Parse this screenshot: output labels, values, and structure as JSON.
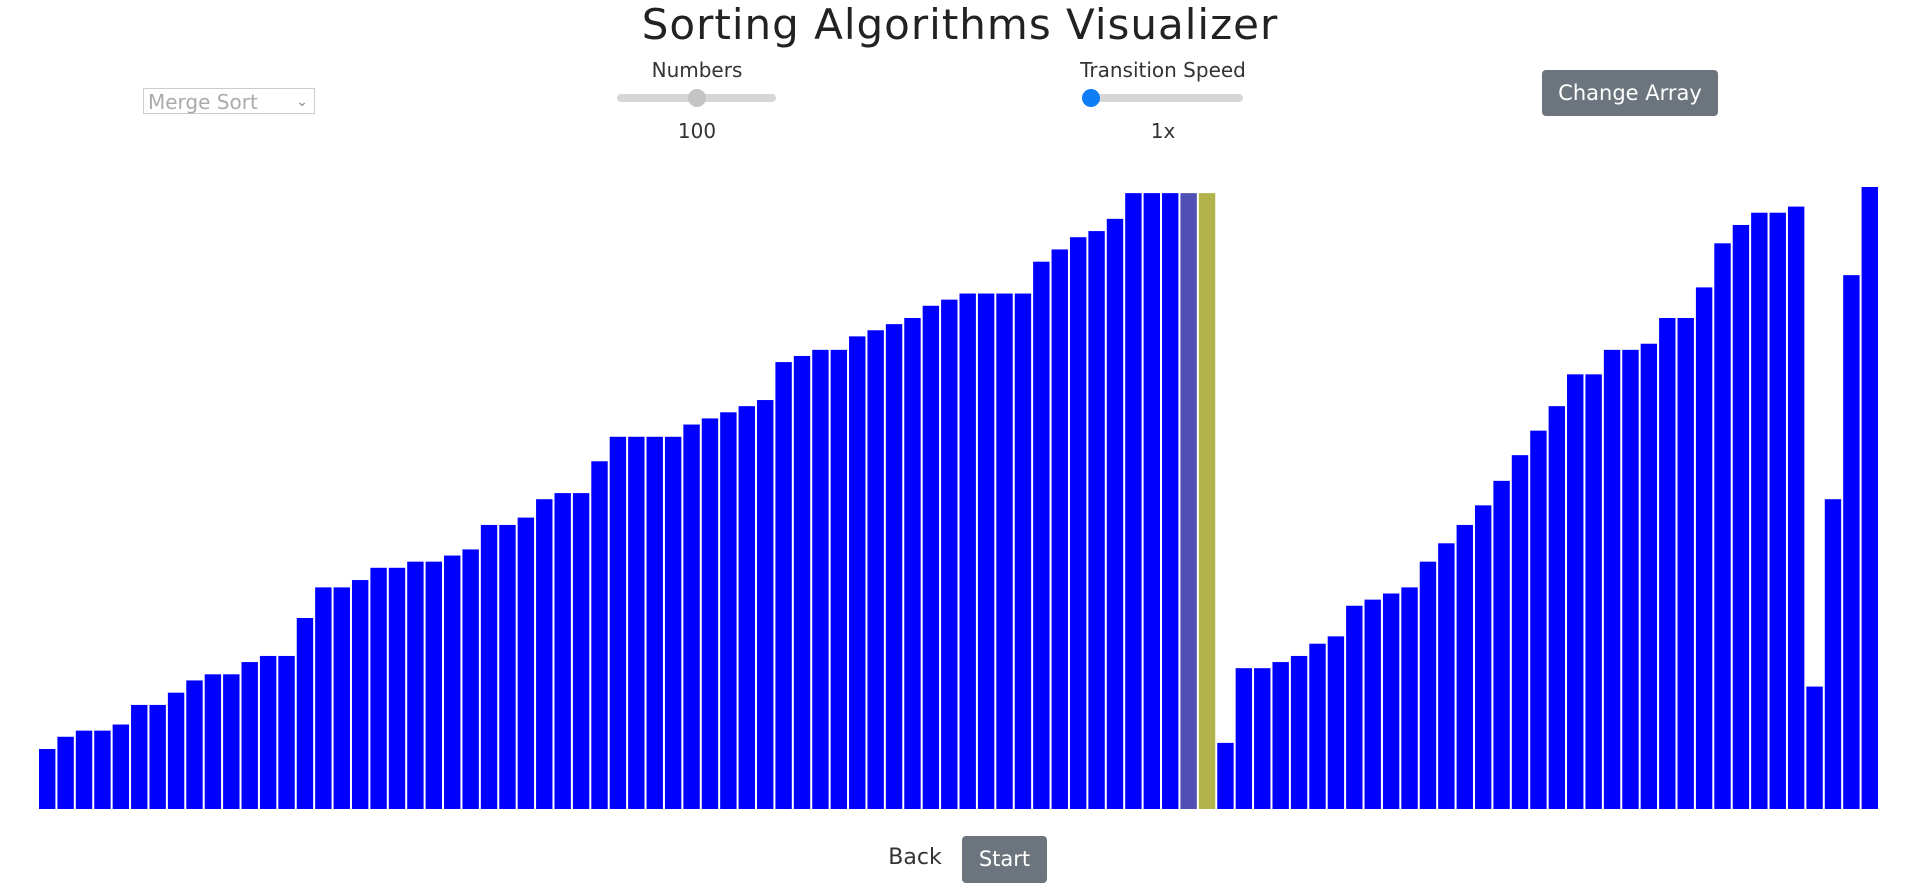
{
  "header": {
    "title": "Sorting Algorithms Visualizer"
  },
  "controls": {
    "algorithm": "Merge Sort",
    "numbers_label": "Numbers",
    "numbers_value": 100,
    "speed_label": "Transition Speed",
    "speed_value": "1x",
    "change_array": "Change Array"
  },
  "bars": {
    "color": "#0000ff",
    "highlight": [
      {
        "index": 62,
        "color": "#4f4fb4"
      },
      {
        "index": 63,
        "color": "#b3b34b"
      }
    ],
    "values": [
      49,
      59,
      64,
      64,
      69,
      85,
      85,
      95,
      105,
      110,
      110,
      120,
      125,
      125,
      156,
      181,
      181,
      187,
      197,
      197,
      202,
      202,
      207,
      212,
      232,
      232,
      238,
      253,
      258,
      258,
      284,
      304,
      304,
      304,
      304,
      314,
      319,
      324,
      329,
      334,
      365,
      370,
      375,
      375,
      386,
      391,
      396,
      401,
      411,
      416,
      421,
      421,
      421,
      421,
      447,
      457,
      467,
      472,
      482,
      503,
      503,
      503,
      503,
      503,
      54,
      115,
      115,
      120,
      125,
      135,
      141,
      166,
      171,
      176,
      181,
      202,
      217,
      232,
      248,
      268,
      289,
      309,
      329,
      355,
      355,
      375,
      375,
      380,
      401,
      401,
      426,
      462,
      477,
      487,
      487,
      492,
      100,
      253,
      436,
      508
    ]
  },
  "footer": {
    "back": "Back",
    "start": "Start"
  }
}
